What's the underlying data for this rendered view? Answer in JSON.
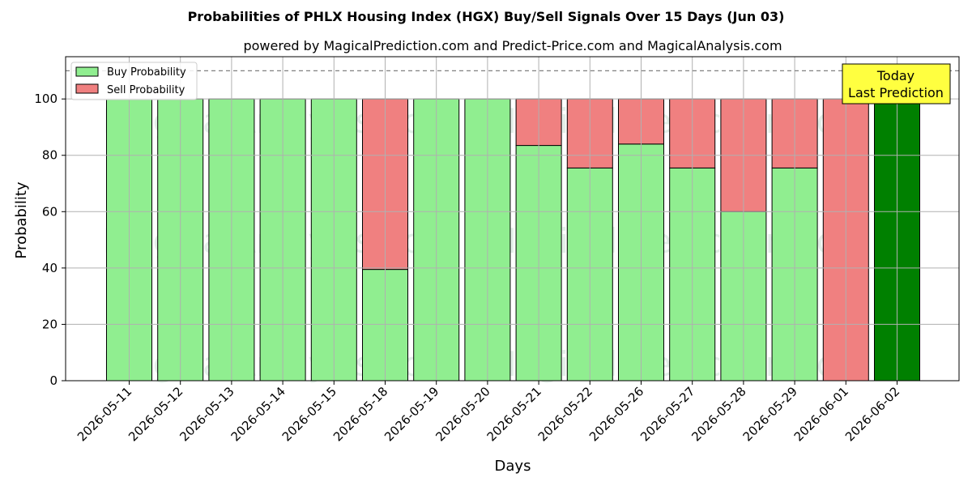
{
  "chart_data": {
    "type": "bar",
    "title": "Probabilities of PHLX Housing Index (HGX) Buy/Sell Signals Over 15 Days (Jun 03)",
    "subtitle": "powered by MagicalPrediction.com and Predict-Price.com and MagicalAnalysis.com",
    "xlabel": "Days",
    "ylabel": "Probability",
    "ylim": [
      0,
      115
    ],
    "yticks": [
      0,
      20,
      40,
      60,
      80,
      100
    ],
    "grid": true,
    "legend_position": "top-left",
    "reference_line": {
      "y": 110,
      "style": "dashed",
      "color": "#808080"
    },
    "categories": [
      "2026-05-11",
      "2026-05-12",
      "2026-05-13",
      "2026-05-14",
      "2026-05-15",
      "2026-05-18",
      "2026-05-19",
      "2026-05-20",
      "2026-05-21",
      "2026-05-22",
      "2026-05-26",
      "2026-05-27",
      "2026-05-28",
      "2026-05-29",
      "2026-06-01",
      "2026-06-02"
    ],
    "series": [
      {
        "name": "Buy Probability",
        "color": "#90ee90",
        "values": [
          100,
          100,
          100,
          100,
          100,
          39.5,
          100,
          100,
          83.5,
          75.5,
          84,
          75.5,
          60,
          75.5,
          0,
          100
        ]
      },
      {
        "name": "Sell Probability",
        "color": "#f08080",
        "values": [
          0,
          0,
          0,
          0,
          0,
          60.5,
          0,
          0,
          16.5,
          24.5,
          16,
          24.5,
          40,
          24.5,
          100,
          0
        ]
      }
    ],
    "highlight": {
      "index": 15,
      "color": "#008000"
    },
    "annotation": {
      "line1": "Today",
      "line2": "Last Prediction",
      "background": "#ffff40"
    },
    "watermarks": [
      "MagicalAnalysis.com",
      "MagicalPrediction.com"
    ]
  }
}
